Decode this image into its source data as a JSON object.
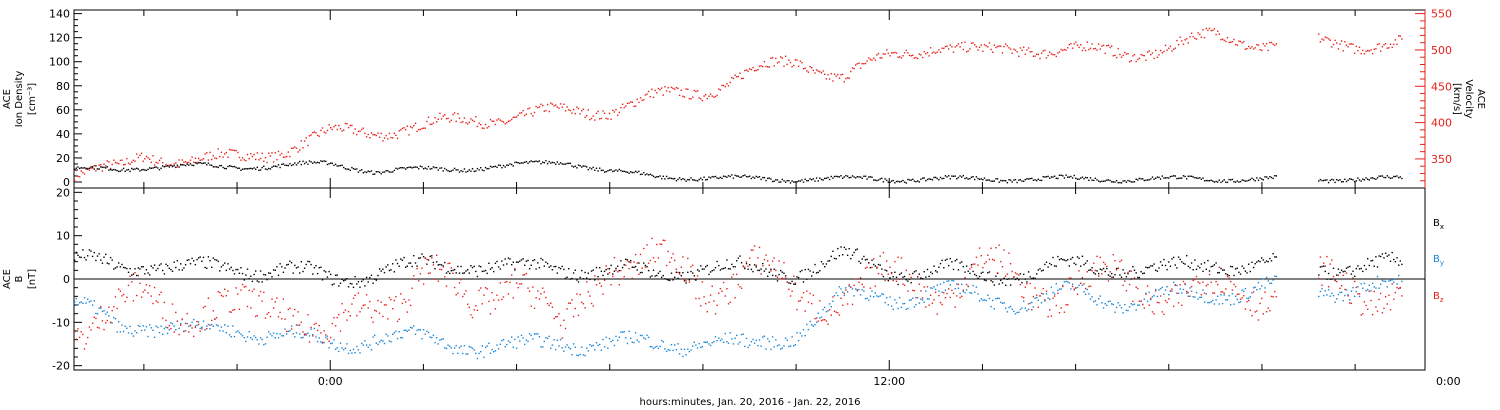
{
  "colors": {
    "density": "#000000",
    "velocity": "#e8201a",
    "bx": "#000000",
    "by": "#1a86d6",
    "bz": "#e8201a"
  },
  "time_axis": {
    "label": "hours:minutes, Jan. 20, 2016 - Jan. 22, 2016",
    "ticks": [
      {
        "t": 0,
        "label": "0:00"
      },
      {
        "t": 12,
        "label": "12:00"
      },
      {
        "t": 24,
        "label": "0:00"
      }
    ],
    "range_hours": [
      -5.5,
      23.5
    ]
  },
  "chart_data": [
    {
      "type": "scatter",
      "ylabel_lines": [
        "ACE",
        "Ion Density",
        "[cm⁻³]"
      ],
      "ylim": [
        -5,
        143
      ],
      "yticks": [
        {
          "v": 0,
          "label": "0"
        },
        {
          "v": 20,
          "label": "20"
        },
        {
          "v": 40,
          "label": "40"
        },
        {
          "v": 60,
          "label": "60"
        },
        {
          "v": 80,
          "label": "80"
        },
        {
          "v": 100,
          "label": "100"
        },
        {
          "v": 120,
          "label": "120"
        },
        {
          "v": 140,
          "label": "140"
        }
      ],
      "y2label_lines": [
        "ACE",
        "Velocity",
        "[km/s]"
      ],
      "y2lim": [
        310,
        555
      ],
      "y2ticks": [
        {
          "v": 350,
          "label": "350"
        },
        {
          "v": 400,
          "label": "400"
        },
        {
          "v": 450,
          "label": "450"
        },
        {
          "v": 500,
          "label": "500"
        },
        {
          "v": 550,
          "label": "550"
        }
      ],
      "series": [
        {
          "axis": "left",
          "color_key": "density",
          "x": [
            -5.5,
            -4.5,
            -4,
            -3,
            -2,
            -1,
            0,
            1,
            2,
            3,
            4,
            5,
            6,
            7,
            8,
            9,
            10,
            11,
            12,
            13,
            14,
            15,
            16,
            17,
            18,
            19,
            20
          ],
          "values": [
            11,
            11,
            13,
            14,
            13,
            14,
            16,
            9,
            11,
            12,
            14,
            18,
            9,
            5,
            4,
            3,
            3,
            3,
            3,
            3,
            3,
            3,
            3,
            3,
            3,
            3,
            3
          ]
        },
        {
          "axis": "right",
          "color_key": "velocity",
          "x": [
            -5.5,
            -4.5,
            -4,
            -3,
            -2,
            -1,
            0,
            1,
            2,
            3,
            4,
            5,
            6,
            7,
            8,
            9,
            10,
            11,
            12,
            13,
            14,
            15,
            16,
            17,
            18,
            19,
            20
          ],
          "values": [
            335,
            335,
            355,
            350,
            350,
            365,
            385,
            390,
            395,
            405,
            410,
            415,
            420,
            435,
            445,
            470,
            485,
            465,
            490,
            510,
            495,
            505,
            500,
            495,
            505,
            520,
            510
          ]
        }
      ]
    },
    {
      "type": "scatter",
      "ylabel_lines": [
        "ACE",
        "B",
        "[nT]"
      ],
      "ylim": [
        -21,
        21
      ],
      "yticks": [
        {
          "v": -20,
          "label": "-20"
        },
        {
          "v": -10,
          "label": "-10"
        },
        {
          "v": 0,
          "label": "0"
        },
        {
          "v": 10,
          "label": "10"
        },
        {
          "v": 20,
          "label": "20"
        }
      ],
      "series": [
        {
          "name": "B",
          "sub": "x",
          "color_key": "bx",
          "x": [
            -5.5,
            -4.5,
            -4,
            -3,
            -2,
            -1,
            0,
            1,
            2,
            3,
            4,
            5,
            6,
            7,
            8,
            9,
            10,
            11,
            12,
            13,
            14,
            15,
            16,
            17,
            18,
            19,
            20
          ],
          "values": [
            4,
            3,
            4,
            2,
            3,
            2,
            0,
            2,
            3,
            4,
            2,
            3,
            2,
            1,
            3,
            2,
            2,
            5,
            2,
            2,
            1,
            2,
            3,
            3,
            2,
            4,
            3
          ]
        },
        {
          "name": "B",
          "sub": "y",
          "color_key": "by",
          "x": [
            -5.5,
            -4.5,
            -4,
            -3,
            -2,
            -1,
            0,
            1,
            2,
            3,
            4,
            5,
            6,
            7,
            8,
            9,
            10,
            11,
            12,
            13,
            14,
            15,
            16,
            17,
            18,
            19,
            20
          ],
          "values": [
            -6,
            -11,
            -10,
            -12,
            -11,
            -13,
            -15,
            -13,
            -14,
            -15,
            -16,
            -14,
            -15,
            -15,
            -14,
            -16,
            -12,
            -4,
            -4,
            -3,
            -4,
            -5,
            -3,
            -5,
            -4,
            -3,
            -2
          ]
        },
        {
          "name": "B",
          "sub": "z",
          "color_key": "bz",
          "x": [
            -5.5,
            -4.5,
            -4,
            -3,
            -2,
            -1,
            0,
            1,
            2,
            3,
            4,
            5,
            6,
            7,
            8,
            9,
            10,
            11,
            12,
            13,
            14,
            15,
            16,
            17,
            18,
            19,
            20
          ],
          "values": [
            -10,
            -8,
            -4,
            -6,
            -9,
            -4,
            -14,
            -6,
            3,
            -8,
            4,
            -15,
            6,
            4,
            -3,
            5,
            -6,
            -2,
            -1,
            -1,
            2,
            -2,
            -1,
            -1,
            -2,
            -4,
            -2
          ]
        }
      ]
    }
  ]
}
